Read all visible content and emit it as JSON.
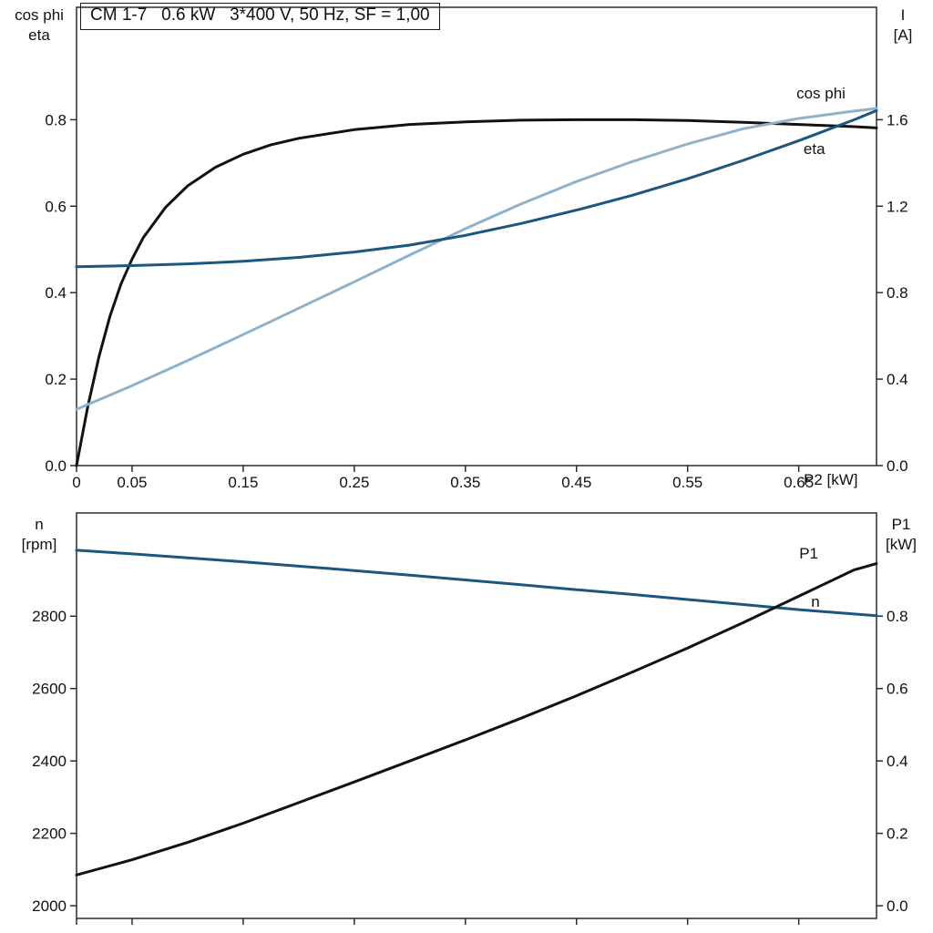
{
  "title_box": "CM 1-7   0.6 kW   3*400 V, 50 Hz, SF = 1,00",
  "colors": {
    "black": "#121212",
    "dark_blue": "#1b567f",
    "light_blue": "#8fb2cc",
    "frame": "#2b2b2b",
    "text": "#111111"
  },
  "chart_data": [
    {
      "type": "line",
      "title": "CM 1-7   0.6 kW   3*400 V, 50 Hz, SF = 1,00",
      "x_axis": {
        "label": "P2 [kW]",
        "range": [
          0,
          0.72
        ],
        "ticks": [
          0,
          0.05,
          0.15,
          0.25,
          0.35,
          0.45,
          0.55,
          0.65
        ],
        "tick_labels": [
          "0",
          "0.05",
          "0.15",
          "0.25",
          "0.35",
          "0.45",
          "0.55",
          "0.65"
        ]
      },
      "left_axis": {
        "label_lines": [
          "cos phi",
          "eta"
        ],
        "range": [
          0,
          1.06
        ],
        "ticks": [
          0,
          0.2,
          0.4,
          0.6,
          0.8
        ],
        "tick_labels": [
          "0.0",
          "0.2",
          "0.4",
          "0.6",
          "0.8"
        ]
      },
      "right_axis": {
        "label_lines": [
          "I",
          "[A]"
        ],
        "range": [
          0,
          2.12
        ],
        "ticks": [
          0,
          0.4,
          0.8,
          1.2,
          1.6
        ],
        "tick_labels": [
          "0.0",
          "0.4",
          "0.8",
          "1.2",
          "1.6"
        ]
      },
      "series": [
        {
          "name": "eta",
          "axis": "left",
          "color": "black",
          "points": [
            [
              0,
              0
            ],
            [
              0.01,
              0.135
            ],
            [
              0.02,
              0.25
            ],
            [
              0.03,
              0.345
            ],
            [
              0.04,
              0.42
            ],
            [
              0.05,
              0.478
            ],
            [
              0.06,
              0.527
            ],
            [
              0.08,
              0.597
            ],
            [
              0.1,
              0.647
            ],
            [
              0.125,
              0.69
            ],
            [
              0.15,
              0.72
            ],
            [
              0.175,
              0.742
            ],
            [
              0.2,
              0.757
            ],
            [
              0.25,
              0.777
            ],
            [
              0.3,
              0.789
            ],
            [
              0.35,
              0.795
            ],
            [
              0.4,
              0.799
            ],
            [
              0.45,
              0.8
            ],
            [
              0.5,
              0.8
            ],
            [
              0.55,
              0.798
            ],
            [
              0.6,
              0.794
            ],
            [
              0.65,
              0.789
            ],
            [
              0.7,
              0.784
            ],
            [
              0.72,
              0.781
            ]
          ]
        },
        {
          "name": "cos phi",
          "axis": "left",
          "color": "light_blue",
          "points": [
            [
              0,
              0.13
            ],
            [
              0.05,
              0.185
            ],
            [
              0.1,
              0.243
            ],
            [
              0.15,
              0.303
            ],
            [
              0.2,
              0.364
            ],
            [
              0.25,
              0.425
            ],
            [
              0.3,
              0.487
            ],
            [
              0.35,
              0.548
            ],
            [
              0.4,
              0.605
            ],
            [
              0.45,
              0.657
            ],
            [
              0.5,
              0.703
            ],
            [
              0.55,
              0.744
            ],
            [
              0.6,
              0.779
            ],
            [
              0.65,
              0.803
            ],
            [
              0.7,
              0.82
            ],
            [
              0.72,
              0.826
            ]
          ]
        },
        {
          "name": "I",
          "axis": "right",
          "color": "dark_blue",
          "points": [
            [
              0,
              0.92
            ],
            [
              0.05,
              0.925
            ],
            [
              0.1,
              0.933
            ],
            [
              0.15,
              0.945
            ],
            [
              0.2,
              0.963
            ],
            [
              0.25,
              0.988
            ],
            [
              0.3,
              1.02
            ],
            [
              0.35,
              1.065
            ],
            [
              0.4,
              1.12
            ],
            [
              0.45,
              1.182
            ],
            [
              0.5,
              1.25
            ],
            [
              0.55,
              1.327
            ],
            [
              0.6,
              1.412
            ],
            [
              0.65,
              1.503
            ],
            [
              0.7,
              1.6
            ],
            [
              0.72,
              1.642
            ]
          ]
        }
      ],
      "annotations": [
        {
          "text": "cos phi",
          "x": 0.67,
          "y": 0.862,
          "color": "light_blue"
        },
        {
          "text": "eta",
          "x": 0.664,
          "y": 0.733,
          "color": "black"
        }
      ]
    },
    {
      "type": "line",
      "title": "",
      "x_axis": {
        "label": "",
        "range": [
          0,
          0.72
        ],
        "ticks": [
          0,
          0.05,
          0.15,
          0.25,
          0.35,
          0.45,
          0.55,
          0.65
        ],
        "tick_labels": []
      },
      "left_axis": {
        "label_lines": [
          "n",
          "[rpm]"
        ],
        "range": [
          1965,
          3085
        ],
        "ticks": [
          2000,
          2200,
          2400,
          2600,
          2800
        ],
        "tick_labels": [
          "2000",
          "2200",
          "2400",
          "2600",
          "2800"
        ]
      },
      "right_axis": {
        "label_lines": [
          "P1",
          "[kW]"
        ],
        "range": [
          -0.035,
          1.085
        ],
        "ticks": [
          0,
          0.2,
          0.4,
          0.6,
          0.8
        ],
        "tick_labels": [
          "0.0",
          "0.2",
          "0.4",
          "0.6",
          "0.8"
        ]
      },
      "series": [
        {
          "name": "n",
          "axis": "left",
          "color": "dark_blue",
          "points": [
            [
              0,
              2982
            ],
            [
              0.05,
              2972
            ],
            [
              0.1,
              2961
            ],
            [
              0.15,
              2950
            ],
            [
              0.2,
              2938
            ],
            [
              0.25,
              2926
            ],
            [
              0.3,
              2913
            ],
            [
              0.35,
              2900
            ],
            [
              0.4,
              2887
            ],
            [
              0.45,
              2873
            ],
            [
              0.5,
              2860
            ],
            [
              0.55,
              2846
            ],
            [
              0.6,
              2832
            ],
            [
              0.65,
              2818
            ],
            [
              0.7,
              2806
            ],
            [
              0.72,
              2801
            ]
          ]
        },
        {
          "name": "P1",
          "axis": "right",
          "color": "black",
          "points": [
            [
              0,
              0.085
            ],
            [
              0.05,
              0.127
            ],
            [
              0.1,
              0.175
            ],
            [
              0.15,
              0.228
            ],
            [
              0.2,
              0.285
            ],
            [
              0.25,
              0.342
            ],
            [
              0.3,
              0.4
            ],
            [
              0.35,
              0.458
            ],
            [
              0.4,
              0.518
            ],
            [
              0.45,
              0.58
            ],
            [
              0.5,
              0.645
            ],
            [
              0.55,
              0.712
            ],
            [
              0.6,
              0.782
            ],
            [
              0.65,
              0.855
            ],
            [
              0.7,
              0.928
            ],
            [
              0.72,
              0.945
            ]
          ]
        }
      ],
      "annotations": [
        {
          "text": "P1",
          "x": 0.659,
          "y": 2974,
          "color": "black"
        },
        {
          "text": "n",
          "x": 0.665,
          "y": 2841,
          "color": "dark_blue"
        }
      ]
    }
  ]
}
